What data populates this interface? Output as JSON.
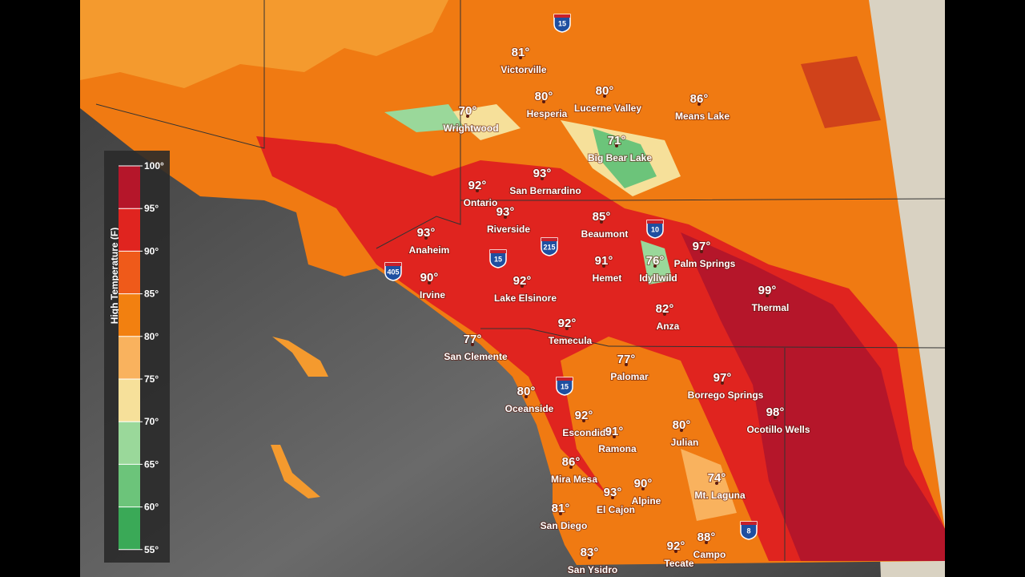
{
  "legend": {
    "title": "High Temperature (F)",
    "labels": [
      "100°",
      "95°",
      "90°",
      "85°",
      "80°",
      "75°",
      "70°",
      "65°",
      "60°",
      "55°"
    ]
  },
  "places": [
    {
      "temp": "81°",
      "name": "Victorville"
    },
    {
      "temp": "80°",
      "name": "Hesperia"
    },
    {
      "temp": "80°",
      "name": "Lucerne Valley"
    },
    {
      "temp": "86°",
      "name": "Means Lake"
    },
    {
      "temp": "70°",
      "name": "Wrightwood"
    },
    {
      "temp": "71°",
      "name": "Big Bear Lake"
    },
    {
      "temp": "93°",
      "name": "San Bernardino"
    },
    {
      "temp": "92°",
      "name": "Ontario"
    },
    {
      "temp": "93°",
      "name": "Riverside"
    },
    {
      "temp": "85°",
      "name": "Beaumont"
    },
    {
      "temp": "93°",
      "name": "Anaheim"
    },
    {
      "temp": "97°",
      "name": "Palm Springs"
    },
    {
      "temp": "91°",
      "name": "Hemet"
    },
    {
      "temp": "76°",
      "name": "Idyllwild"
    },
    {
      "temp": "90°",
      "name": "Irvine"
    },
    {
      "temp": "92°",
      "name": "Lake Elsinore"
    },
    {
      "temp": "99°",
      "name": "Thermal"
    },
    {
      "temp": "82°",
      "name": "Anza"
    },
    {
      "temp": "92°",
      "name": "Temecula"
    },
    {
      "temp": "77°",
      "name": "San Clemente"
    },
    {
      "temp": "77°",
      "name": "Palomar"
    },
    {
      "temp": "97°",
      "name": "Borrego Springs"
    },
    {
      "temp": "80°",
      "name": "Oceanside"
    },
    {
      "temp": "98°",
      "name": "Ocotillo Wells"
    },
    {
      "temp": "92°",
      "name": "Escondido"
    },
    {
      "temp": "91°",
      "name": "Ramona"
    },
    {
      "temp": "80°",
      "name": "Julian"
    },
    {
      "temp": "86°",
      "name": "Mira Mesa"
    },
    {
      "temp": "90°",
      "name": "Alpine"
    },
    {
      "temp": "74°",
      "name": "Mt. Laguna"
    },
    {
      "temp": "93°",
      "name": "El Cajon"
    },
    {
      "temp": "81°",
      "name": "San Diego"
    },
    {
      "temp": "88°",
      "name": "Campo"
    },
    {
      "temp": "92°",
      "name": "Tecate"
    },
    {
      "temp": "83°",
      "name": "San Ysidro"
    }
  ],
  "shields": [
    "15",
    "10",
    "215",
    "15",
    "405",
    "15",
    "8"
  ]
}
